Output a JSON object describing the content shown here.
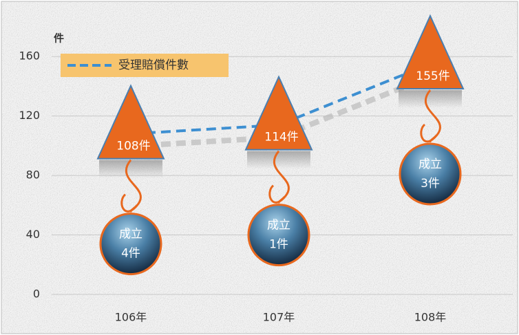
{
  "chart_data": {
    "type": "line",
    "y_label": "件",
    "categories": [
      "106年",
      "107年",
      "108年"
    ],
    "series": [
      {
        "name": "受理賠償件數",
        "color": "#3d8fd1",
        "marker_color": "#e8681e",
        "values": [
          108,
          114,
          155
        ],
        "value_labels": [
          "108件",
          "114件",
          "155件"
        ]
      }
    ],
    "annotations": [
      {
        "title": "成立",
        "count": "4件"
      },
      {
        "title": "成立",
        "count": "1件"
      },
      {
        "title": "成立",
        "count": "3件"
      }
    ],
    "ylim": [
      0,
      180
    ],
    "yticks": [
      0,
      40,
      80,
      120,
      160
    ],
    "grid": true
  }
}
